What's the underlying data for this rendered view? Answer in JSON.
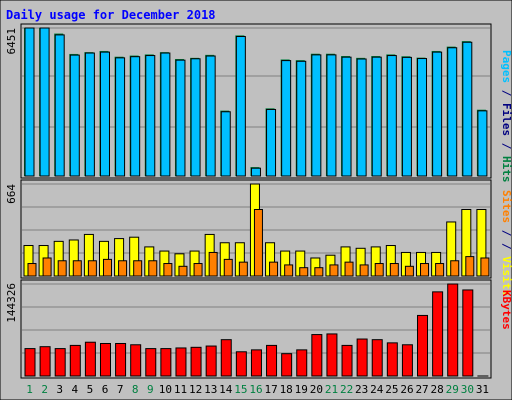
{
  "chart_data": [
    {
      "type": "bar",
      "title": "Daily usage for December 2018",
      "panel": "top",
      "ymax_label": "6451",
      "ylim": [
        0,
        6451
      ],
      "grid": true,
      "legend_right": [
        {
          "text": "Pages",
          "color": "#00C0FF"
        },
        {
          "text": "Files",
          "color": "#000080"
        },
        {
          "text": "Hits",
          "color": "#008040"
        }
      ],
      "series": [
        {
          "name": "Hits",
          "color": "#008040",
          "values": [
            6451,
            6451,
            6210,
            5320,
            5400,
            5450,
            5200,
            5250,
            5300,
            5400,
            5100,
            5150,
            5280,
            2850,
            6130,
            390,
            2950,
            5080,
            5050,
            5330,
            5330,
            5230,
            5150,
            5230,
            5300,
            5220,
            5160,
            5450,
            5640,
            5880,
            2890
          ]
        },
        {
          "name": "Files",
          "color": "#000080",
          "values": [
            6451,
            6451,
            6210,
            5320,
            5400,
            5450,
            5200,
            5250,
            5300,
            5400,
            5100,
            5150,
            5280,
            2850,
            6130,
            390,
            2950,
            5080,
            5050,
            5330,
            5330,
            5230,
            5150,
            5230,
            5300,
            5220,
            5160,
            5450,
            5640,
            5880,
            2890
          ]
        },
        {
          "name": "Pages",
          "color": "#00C0FF",
          "values": [
            6451,
            6451,
            6150,
            5270,
            5360,
            5400,
            5150,
            5200,
            5250,
            5360,
            5050,
            5110,
            5230,
            2800,
            6080,
            340,
            2900,
            5030,
            5000,
            5280,
            5280,
            5180,
            5100,
            5180,
            5250,
            5170,
            5120,
            5400,
            5590,
            5830,
            2840
          ]
        }
      ]
    },
    {
      "type": "bar",
      "panel": "middle",
      "ymax_label": "664",
      "ylim": [
        0,
        664
      ],
      "grid": true,
      "legend_right": [
        {
          "text": "Sites",
          "color": "#FF8000"
        },
        {
          "text": "/",
          "color": "#000080"
        },
        {
          "text": "Visits",
          "color": "#FFFF00"
        }
      ],
      "series": [
        {
          "name": "Visits",
          "color": "#FFFF00",
          "values": [
            220,
            220,
            250,
            260,
            300,
            250,
            270,
            280,
            210,
            180,
            160,
            180,
            300,
            240,
            240,
            664,
            240,
            180,
            180,
            130,
            150,
            210,
            200,
            210,
            220,
            170,
            170,
            170,
            390,
            480,
            480
          ]
        },
        {
          "name": "Sites",
          "color": "#FF8000",
          "values": [
            90,
            130,
            110,
            110,
            110,
            120,
            110,
            110,
            110,
            90,
            70,
            90,
            170,
            120,
            100,
            480,
            100,
            80,
            60,
            60,
            80,
            100,
            80,
            90,
            90,
            70,
            90,
            90,
            110,
            140,
            130
          ]
        }
      ]
    },
    {
      "type": "bar",
      "panel": "bottom",
      "ymax_label": "144326",
      "ylim": [
        0,
        144326
      ],
      "grid": true,
      "legend_right": [
        {
          "text": "KBytes",
          "color": "#FF0000"
        }
      ],
      "series": [
        {
          "name": "KBytes",
          "color": "#FF0000",
          "values": [
            43000,
            46000,
            43000,
            48000,
            53000,
            51000,
            51000,
            49000,
            43000,
            43000,
            44000,
            45000,
            47000,
            57000,
            38000,
            41000,
            48000,
            35000,
            41000,
            65000,
            66000,
            48000,
            58000,
            57000,
            52000,
            49000,
            95000,
            132000,
            144326,
            135000,
            1
          ]
        }
      ]
    }
  ],
  "x_labels": [
    "1",
    "2",
    "3",
    "4",
    "5",
    "6",
    "7",
    "8",
    "9",
    "10",
    "11",
    "12",
    "13",
    "14",
    "15",
    "16",
    "17",
    "18",
    "19",
    "20",
    "21",
    "22",
    "23",
    "24",
    "25",
    "26",
    "27",
    "28",
    "29",
    "30",
    "31"
  ],
  "x_label_colors": [
    "#008040",
    "#008040",
    "#000000",
    "#000000",
    "#000000",
    "#000000",
    "#000000",
    "#008040",
    "#008040",
    "#000000",
    "#000000",
    "#000000",
    "#000000",
    "#000000",
    "#008040",
    "#008040",
    "#000000",
    "#000000",
    "#000000",
    "#000000",
    "#008040",
    "#008040",
    "#000000",
    "#000000",
    "#000000",
    "#000000",
    "#000000",
    "#000000",
    "#008040",
    "#008040",
    "#000000"
  ],
  "colors": {
    "background": "#C0C0C0",
    "title": "#0000FF",
    "grid": "#808080",
    "bar_outline": "#000000"
  }
}
